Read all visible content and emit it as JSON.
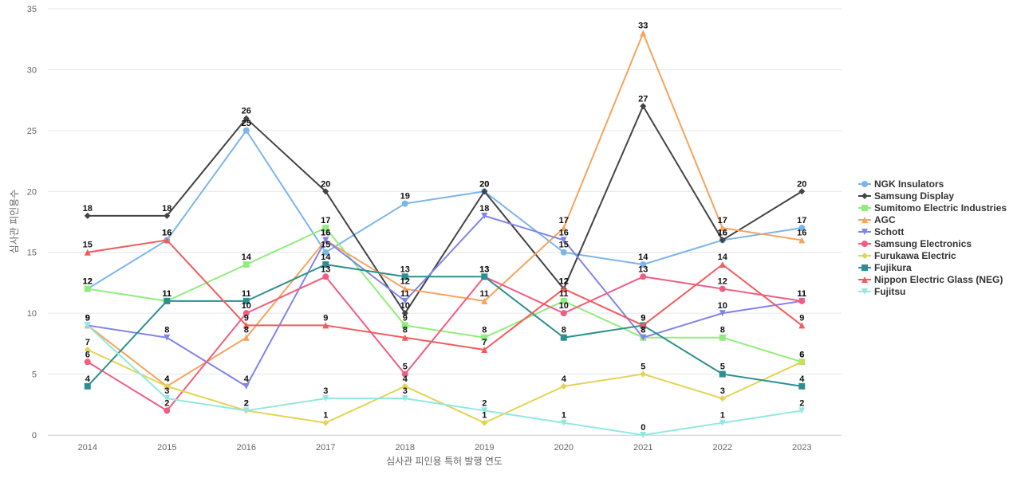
{
  "chart_data": {
    "type": "line",
    "title": "",
    "xlabel": "심사관 피인용 특허 발행 연도",
    "ylabel": "심사관 피인용수",
    "ylim": [
      0,
      35
    ],
    "y_ticks": [
      0,
      5,
      10,
      15,
      20,
      25,
      30,
      35
    ],
    "grid": true,
    "legend_position": "right",
    "categories": [
      "2014",
      "2015",
      "2016",
      "2017",
      "2018",
      "2019",
      "2020",
      "2021",
      "2022",
      "2023"
    ],
    "series": [
      {
        "name": "NGK Insulators",
        "color": "#7cb5ec",
        "marker": "circle",
        "values": [
          12,
          16,
          25,
          15,
          19,
          20,
          15,
          14,
          16,
          17
        ]
      },
      {
        "name": "Samsung Display",
        "color": "#434348",
        "marker": "diamond",
        "values": [
          18,
          18,
          26,
          20,
          10,
          20,
          12,
          27,
          16,
          20
        ]
      },
      {
        "name": "Sumitomo Electric Industries",
        "color": "#90ed7d",
        "marker": "square",
        "values": [
          12,
          11,
          14,
          17,
          9,
          8,
          11,
          8,
          8,
          6
        ]
      },
      {
        "name": "AGC",
        "color": "#f7a35c",
        "marker": "triangle",
        "values": [
          9,
          4,
          8,
          16,
          12,
          11,
          17,
          33,
          17,
          16
        ]
      },
      {
        "name": "Schott",
        "color": "#8085e9",
        "marker": "triangle-down",
        "values": [
          9,
          8,
          4,
          16,
          11,
          18,
          16,
          8,
          10,
          11
        ]
      },
      {
        "name": "Samsung Electronics",
        "color": "#f15c80",
        "marker": "circle",
        "values": [
          6,
          2,
          10,
          13,
          5,
          13,
          10,
          13,
          12,
          11
        ]
      },
      {
        "name": "Furukawa Electric",
        "color": "#e4d354",
        "marker": "diamond",
        "values": [
          7,
          4,
          2,
          1,
          4,
          1,
          4,
          5,
          3,
          6
        ]
      },
      {
        "name": "Fujikura",
        "color": "#2b908f",
        "marker": "square",
        "values": [
          4,
          11,
          11,
          14,
          13,
          13,
          8,
          9,
          5,
          4
        ]
      },
      {
        "name": "Nippon Electric Glass (NEG)",
        "color": "#f45b5b",
        "marker": "triangle",
        "values": [
          15,
          16,
          9,
          9,
          8,
          7,
          12,
          9,
          14,
          9
        ]
      },
      {
        "name": "Fujitsu",
        "color": "#91e8e1",
        "marker": "triangle-down",
        "values": [
          9,
          3,
          2,
          3,
          3,
          2,
          1,
          0,
          1,
          2
        ]
      }
    ]
  }
}
